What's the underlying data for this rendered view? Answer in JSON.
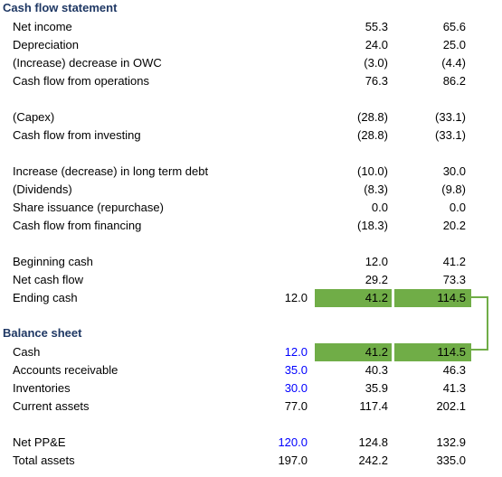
{
  "theme": {
    "highlight_color": "#70ad47",
    "input_color": "#0000ff",
    "section_title_color": "#1f3864"
  },
  "cash_flow": {
    "title": "Cash flow statement",
    "rows": [
      {
        "label": "Net income",
        "c0": "",
        "c1": "55.3",
        "c2": "65.6"
      },
      {
        "label": "Depreciation",
        "c0": "",
        "c1": "24.0",
        "c2": "25.0"
      },
      {
        "label": "(Increase) decrease in OWC",
        "c0": "",
        "c1": "(3.0)",
        "c2": "(4.4)"
      },
      {
        "label": "Cash flow from operations",
        "c0": "",
        "c1": "76.3",
        "c2": "86.2"
      },
      {
        "label": "(Capex)",
        "c0": "",
        "c1": "(28.8)",
        "c2": "(33.1)"
      },
      {
        "label": "Cash flow from investing",
        "c0": "",
        "c1": "(28.8)",
        "c2": "(33.1)"
      },
      {
        "label": "Increase (decrease) in long term debt",
        "c0": "",
        "c1": "(10.0)",
        "c2": "30.0"
      },
      {
        "label": "(Dividends)",
        "c0": "",
        "c1": "(8.3)",
        "c2": "(9.8)"
      },
      {
        "label": "Share issuance (repurchase)",
        "c0": "",
        "c1": "0.0",
        "c2": "0.0"
      },
      {
        "label": "Cash flow from financing",
        "c0": "",
        "c1": "(18.3)",
        "c2": "20.2"
      },
      {
        "label": "Beginning cash",
        "c0": "",
        "c1": "12.0",
        "c2": "41.2"
      },
      {
        "label": "Net cash flow",
        "c0": "",
        "c1": "29.2",
        "c2": "73.3"
      },
      {
        "label": "Ending cash",
        "c0": "12.0",
        "c1": "41.2",
        "c2": "114.5"
      }
    ]
  },
  "balance_sheet": {
    "title": "Balance sheet",
    "rows": [
      {
        "label": "Cash",
        "c0": "12.0",
        "c1": "41.2",
        "c2": "114.5"
      },
      {
        "label": "Accounts receivable",
        "c0": "35.0",
        "c1": "40.3",
        "c2": "46.3"
      },
      {
        "label": "Inventories",
        "c0": "30.0",
        "c1": "35.9",
        "c2": "41.3"
      },
      {
        "label": "Current assets",
        "c0": "77.0",
        "c1": "117.4",
        "c2": "202.1"
      },
      {
        "label": "Net PP&E",
        "c0": "120.0",
        "c1": "124.8",
        "c2": "132.9"
      },
      {
        "label": "Total assets",
        "c0": "197.0",
        "c1": "242.2",
        "c2": "335.0"
      }
    ]
  }
}
